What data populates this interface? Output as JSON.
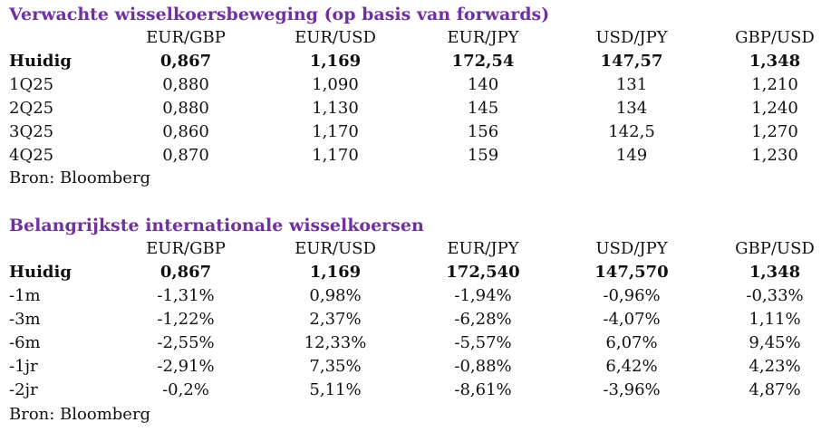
{
  "accent_color": "#7030A0",
  "forecast": {
    "title": "Verwachte wisselkoersbeweging (op basis van forwards)",
    "columns": [
      "EUR/GBP",
      "EUR/USD",
      "EUR/JPY",
      "USD/JPY",
      "GBP/USD"
    ],
    "rows": [
      {
        "label": "Huidig",
        "bold": true,
        "values": [
          "0,867",
          "1,169",
          "172,54",
          "147,57",
          "1,348"
        ]
      },
      {
        "label": "1Q25",
        "values": [
          "0,880",
          "1,090",
          "140",
          "131",
          "1,210"
        ]
      },
      {
        "label": "2Q25",
        "values": [
          "0,880",
          "1,130",
          "145",
          "134",
          "1,240"
        ]
      },
      {
        "label": "3Q25",
        "values": [
          "0,860",
          "1,170",
          "156",
          "142,5",
          "1,270"
        ]
      },
      {
        "label": "4Q25",
        "values": [
          "0,870",
          "1,170",
          "159",
          "149",
          "1,230"
        ]
      }
    ],
    "source": "Bron: Bloomberg"
  },
  "rates": {
    "title": "Belangrijkste internationale wisselkoersen",
    "columns": [
      "EUR/GBP",
      "EUR/USD",
      "EUR/JPY",
      "USD/JPY",
      "GBP/USD"
    ],
    "rows": [
      {
        "label": "Huidig",
        "bold": true,
        "values": [
          "0,867",
          "1,169",
          "172,540",
          "147,570",
          "1,348"
        ]
      },
      {
        "label": "-1m",
        "values": [
          "-1,31%",
          "0,98%",
          "-1,94%",
          "-0,96%",
          "-0,33%"
        ]
      },
      {
        "label": "-3m",
        "values": [
          "-1,22%",
          "2,37%",
          "-6,28%",
          "-4,07%",
          "1,11%"
        ]
      },
      {
        "label": "-6m",
        "values": [
          "-2,55%",
          "12,33%",
          "-5,57%",
          "6,07%",
          "9,45%"
        ]
      },
      {
        "label": "-1jr",
        "values": [
          "-2,91%",
          "7,35%",
          "-0,88%",
          "6,42%",
          "4,23%"
        ]
      },
      {
        "label": "-2jr",
        "values": [
          "-0,2%",
          "5,11%",
          "-8,61%",
          "-3,96%",
          "4,87%"
        ]
      }
    ],
    "source": "Bron: Bloomberg"
  }
}
